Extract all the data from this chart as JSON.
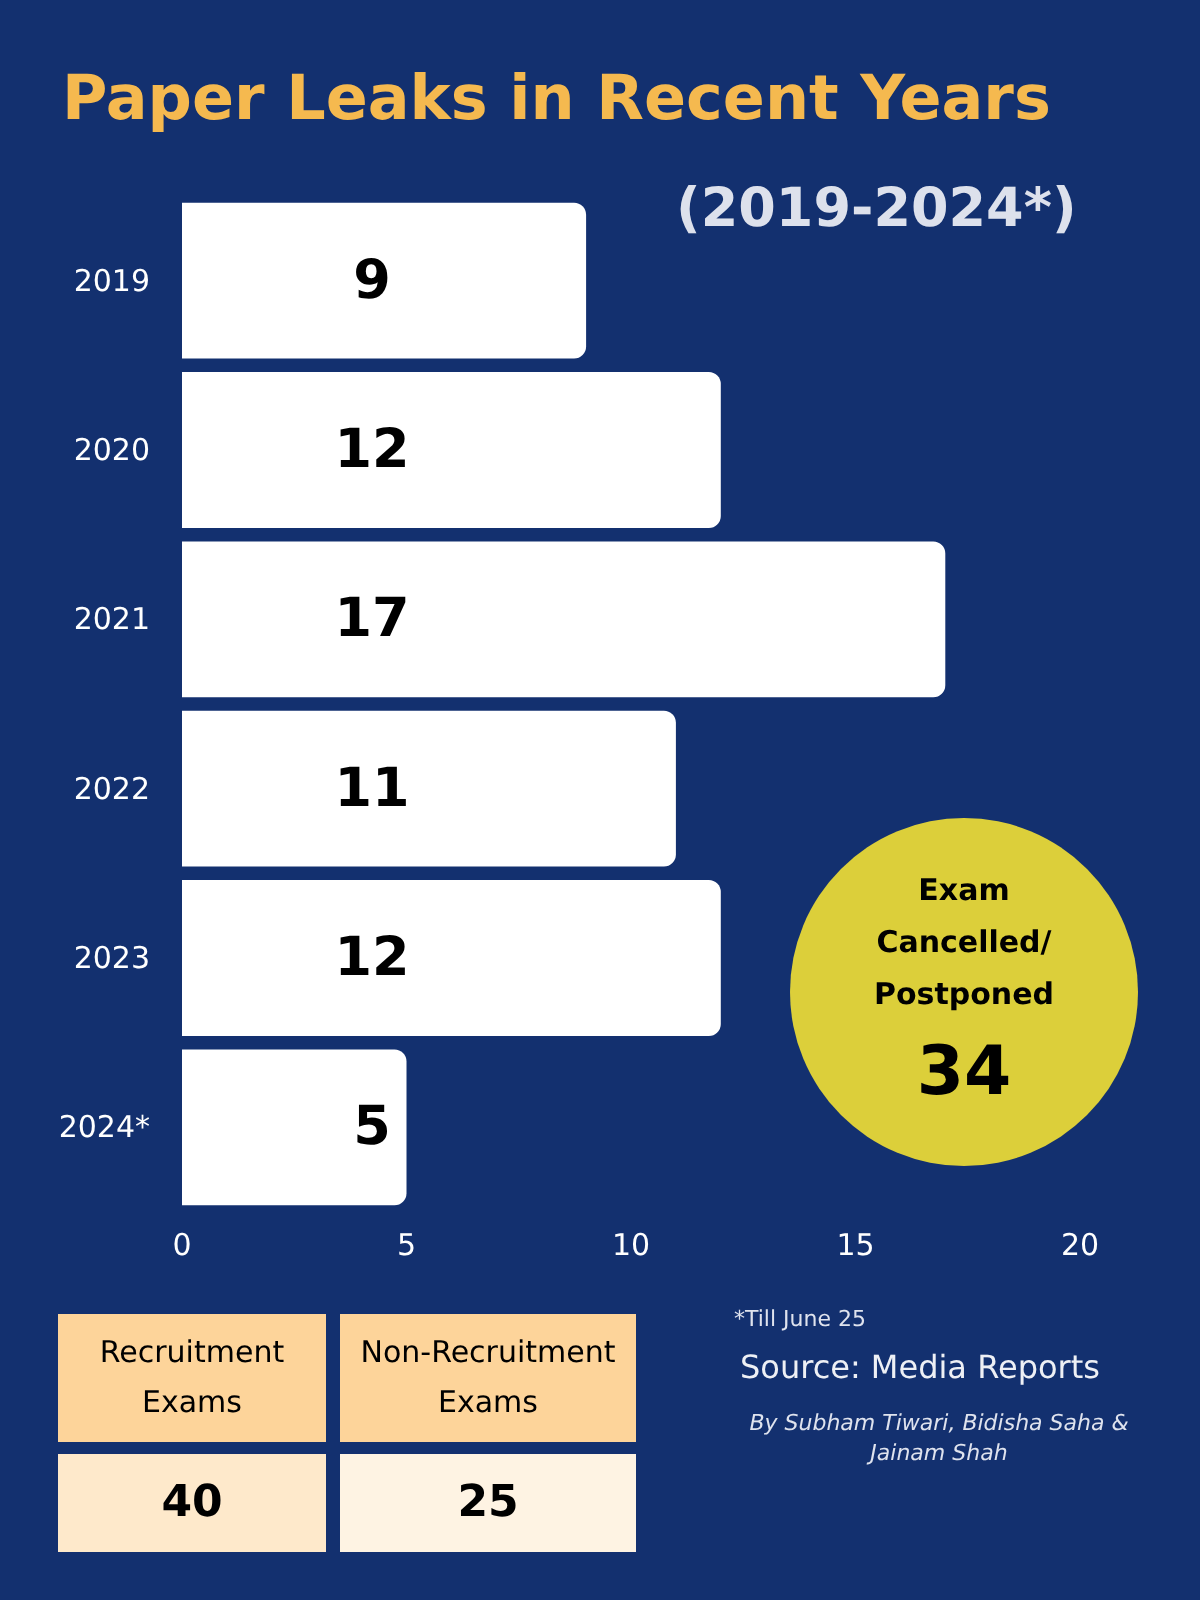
{
  "chart_data": {
    "type": "bar",
    "orientation": "horizontal",
    "title": "Paper Leaks in Recent Years",
    "subtitle": "(2019-2024*)",
    "categories": [
      "2019",
      "2020",
      "2021",
      "2022",
      "2023",
      "2024*"
    ],
    "values": [
      9,
      12,
      17,
      11,
      12,
      5
    ],
    "color": "#ffffff",
    "xlim": [
      0,
      20
    ],
    "xticks": [
      0,
      5,
      10,
      15,
      20
    ],
    "data_labels": true,
    "annotations": [
      "Exam Cancelled/ Postponed",
      "34",
      "Recruitment Exams",
      "40",
      "Non-Recruitment Exams",
      "25",
      "*Till June 25",
      "Source: Media Reports",
      "By Subham Tiwari, Bidisha Saha & Jainam Shah"
    ]
  }
}
